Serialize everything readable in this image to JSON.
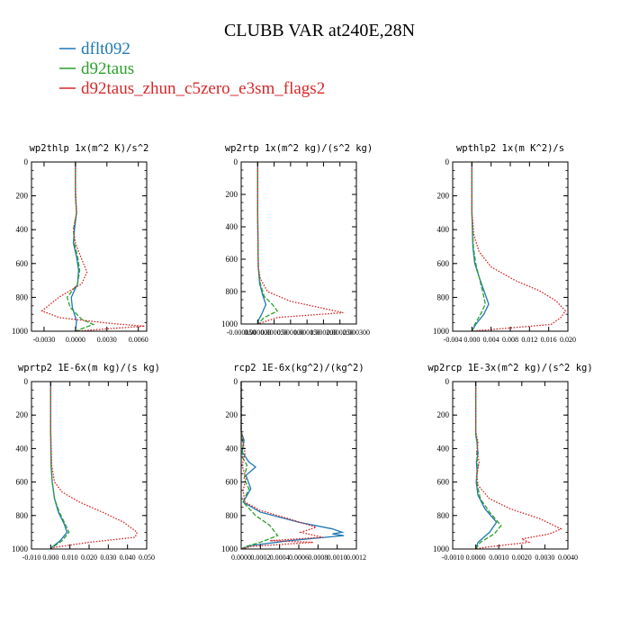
{
  "title": "CLUBB VAR at240E,28N",
  "legend": [
    {
      "name": "dflt092",
      "color": "#1f77b4"
    },
    {
      "name": "d92taus",
      "color": "#2ca02c"
    },
    {
      "name": "d92taus_zhun_c5zero_e3sm_flags2",
      "color": "#d62728"
    }
  ],
  "chart_data": [
    {
      "type": "line",
      "title": "wp2thlp  1x(m^2 K)/s^2",
      "xlim": [
        -0.0042,
        0.0068
      ],
      "ylim": [
        1000,
        0
      ],
      "xticks": [
        -0.003,
        0.0,
        0.003,
        0.006
      ],
      "xtick_labels": [
        "-0.0030",
        "0.0000",
        "0.0030",
        "0.0060"
      ],
      "yticks": [
        0,
        200,
        400,
        600,
        800,
        1000
      ],
      "ytick_labels": [
        "0",
        "200",
        "400",
        "600",
        "800",
        "1000"
      ],
      "series": [
        {
          "color": "#1f77b4",
          "style": "solid",
          "x": [
            0.0,
            0.0,
            0.0001,
            -0.0001,
            -0.0002,
            0.0001,
            0.0003,
            0.0002,
            -0.0004,
            -0.0003,
            0.0001,
            0.0
          ],
          "y": [
            0,
            200,
            300,
            400,
            480,
            560,
            640,
            720,
            800,
            860,
            940,
            1000
          ]
        },
        {
          "color": "#2ca02c",
          "style": "dashed",
          "x": [
            0.0,
            0.0,
            0.0001,
            -0.0002,
            -0.0001,
            0.0002,
            0.0004,
            0.0002,
            -0.0008,
            -0.0005,
            0.0006,
            0.0017,
            0.0
          ],
          "y": [
            0,
            200,
            300,
            400,
            480,
            560,
            640,
            720,
            800,
            860,
            930,
            960,
            1000
          ]
        },
        {
          "color": "#d62728",
          "style": "dotted",
          "x": [
            0.0,
            0.0,
            0.0001,
            -0.0002,
            0.0,
            0.0005,
            0.0011,
            0.0006,
            -0.0016,
            -0.0032,
            -0.0015,
            0.0035,
            0.0066,
            0.0
          ],
          "y": [
            0,
            160,
            300,
            400,
            480,
            560,
            650,
            720,
            800,
            880,
            920,
            955,
            970,
            1000
          ]
        }
      ]
    },
    {
      "type": "line",
      "title": "wp2rtp  1x(m^2 kg)/(s^2 kg)",
      "xlim": [
        -5e-05,
        0.0003
      ],
      "ylim": [
        1000,
        0
      ],
      "xticks": [
        -5e-05,
        0.0,
        5e-05,
        0.0001,
        0.00015,
        0.0002,
        0.00025,
        0.0003
      ],
      "xtick_labels": [
        "-0.000050",
        "0.000000",
        "0.000050",
        "0.000100",
        "0.000150",
        "0.000200",
        "0.000250",
        "0.000300"
      ],
      "yticks": [
        0,
        200,
        400,
        600,
        800,
        1000
      ],
      "ytick_labels": [
        "0",
        "200",
        "400",
        "600",
        "800",
        "1000"
      ],
      "series": [
        {
          "color": "#1f77b4",
          "style": "solid",
          "x": [
            0.0,
            0.0,
            1e-06,
            2e-06,
            6e-06,
            1.5e-05,
            2.5e-05,
            1.2e-05,
            3e-06,
            0.0
          ],
          "y": [
            0,
            300,
            500,
            650,
            750,
            820,
            880,
            940,
            975,
            1000
          ]
        },
        {
          "color": "#2ca02c",
          "style": "dashed",
          "x": [
            0.0,
            0.0,
            1e-06,
            2e-06,
            8e-06,
            2e-05,
            4.5e-05,
            6e-05,
            2e-05,
            0.0
          ],
          "y": [
            0,
            300,
            500,
            650,
            750,
            830,
            880,
            920,
            960,
            1000
          ]
        },
        {
          "color": "#d62728",
          "style": "dotted",
          "x": [
            0.0,
            0.0,
            1e-06,
            2e-06,
            8e-06,
            3e-05,
            0.0001,
            0.000215,
            0.00026,
            6e-05,
            0.0
          ],
          "y": [
            0,
            300,
            500,
            650,
            720,
            800,
            860,
            910,
            930,
            960,
            1000
          ]
        }
      ]
    },
    {
      "type": "line",
      "title": "wpthlp2  1x(m K^2)/s",
      "xlim": [
        -0.004,
        0.02
      ],
      "ylim": [
        1000,
        0
      ],
      "xticks": [
        -0.004,
        0.0,
        0.004,
        0.008,
        0.012,
        0.016,
        0.02
      ],
      "xtick_labels": [
        "-0.004",
        "0.000",
        "0.004",
        "0.008",
        "0.012",
        "0.016",
        "0.020"
      ],
      "yticks": [
        0,
        200,
        400,
        600,
        800,
        1000
      ],
      "ytick_labels": [
        "0",
        "200",
        "400",
        "600",
        "800",
        "1000"
      ],
      "series": [
        {
          "color": "#1f77b4",
          "style": "solid",
          "x": [
            0.0,
            0.0,
            0.0002,
            0.0006,
            0.0015,
            0.0025,
            0.0035,
            0.0025,
            0.0008,
            0.0
          ],
          "y": [
            0,
            300,
            500,
            600,
            680,
            760,
            840,
            900,
            960,
            1000
          ]
        },
        {
          "color": "#2ca02c",
          "style": "dashed",
          "x": [
            0.0,
            0.0,
            0.0003,
            0.0008,
            0.0015,
            0.0022,
            0.0028,
            0.0018,
            0.0006,
            0.0
          ],
          "y": [
            0,
            300,
            500,
            600,
            680,
            760,
            840,
            900,
            960,
            1000
          ]
        },
        {
          "color": "#d62728",
          "style": "dotted",
          "x": [
            0.0,
            0.0,
            0.0004,
            0.0015,
            0.004,
            0.009,
            0.014,
            0.0175,
            0.0195,
            0.0185,
            0.0165,
            0.0
          ],
          "y": [
            0,
            300,
            430,
            530,
            620,
            700,
            760,
            820,
            880,
            920,
            960,
            1000
          ]
        }
      ]
    },
    {
      "type": "line",
      "title": "wprtp2  1E-6x(m kg)/(s kg)",
      "xlim": [
        -0.01,
        0.05
      ],
      "ylim": [
        1000,
        0
      ],
      "xticks": [
        -0.01,
        0.0,
        0.01,
        0.02,
        0.03,
        0.04,
        0.05
      ],
      "xtick_labels": [
        "-0.010",
        "0.000",
        "0.010",
        "0.020",
        "0.030",
        "0.040",
        "0.050"
      ],
      "yticks": [
        0,
        200,
        400,
        600,
        800,
        1000
      ],
      "ytick_labels": [
        "0",
        "200",
        "400",
        "600",
        "800",
        "1000"
      ],
      "series": [
        {
          "color": "#1f77b4",
          "style": "solid",
          "x": [
            0.0,
            0.0,
            0.0002,
            0.0008,
            0.002,
            0.004,
            0.007,
            0.0085,
            0.005,
            0.0005,
            0.0
          ],
          "y": [
            0,
            300,
            500,
            600,
            700,
            780,
            850,
            900,
            950,
            990,
            1000
          ]
        },
        {
          "color": "#2ca02c",
          "style": "dashed",
          "x": [
            0.0,
            0.0,
            0.0002,
            0.0008,
            0.002,
            0.0045,
            0.0075,
            0.0095,
            0.006,
            0.001,
            0.0
          ],
          "y": [
            0,
            300,
            500,
            600,
            700,
            780,
            850,
            900,
            950,
            990,
            1000
          ]
        },
        {
          "color": "#d62728",
          "style": "dotted",
          "x": [
            0.0,
            0.0,
            0.0005,
            0.002,
            0.006,
            0.015,
            0.027,
            0.038,
            0.045,
            0.044,
            0.02,
            0.002,
            0.0
          ],
          "y": [
            0,
            300,
            500,
            600,
            660,
            720,
            780,
            840,
            900,
            930,
            960,
            990,
            1000
          ]
        }
      ]
    },
    {
      "type": "line",
      "title": "rcp2  1E-6x(kg^2)/(kg^2)",
      "xlim": [
        0.0,
        0.0012
      ],
      "ylim": [
        1000,
        0
      ],
      "xticks": [
        0.0,
        0.0002,
        0.0004,
        0.0006,
        0.0008,
        0.001,
        0.0012
      ],
      "xtick_labels": [
        "0.0000",
        "0.0002",
        "0.0004",
        "0.0006",
        "0.0008",
        "0.0010",
        "0.0012"
      ],
      "yticks": [
        0,
        200,
        400,
        600,
        800,
        1000
      ],
      "ytick_labels": [
        "0",
        "200",
        "400",
        "600",
        "800",
        "1000"
      ],
      "series": [
        {
          "color": "#1f77b4",
          "style": "solid",
          "x": [
            0.0,
            0.0,
            3e-05,
            1e-05,
            8e-05,
            0.00015,
            5e-05,
            0.0001,
            2e-05,
            0.0002,
            0.0006,
            0.00095,
            0.00105,
            0.00095,
            0.00107,
            0.0005,
            0.0001,
            0.0
          ],
          "y": [
            0,
            300,
            350,
            420,
            480,
            510,
            560,
            640,
            720,
            780,
            840,
            880,
            900,
            910,
            920,
            950,
            980,
            1000
          ]
        },
        {
          "color": "#2ca02c",
          "style": "dashed",
          "x": [
            0.0,
            0.0,
            2e-05,
            1e-05,
            6e-05,
            3e-05,
            8e-05,
            2e-05,
            0.00015,
            0.0003,
            0.00038,
            0.0002,
            5e-05,
            0.0
          ],
          "y": [
            0,
            300,
            370,
            450,
            500,
            580,
            640,
            720,
            800,
            860,
            920,
            960,
            985,
            1000
          ]
        },
        {
          "color": "#d62728",
          "style": "dotted",
          "x": [
            0.0,
            0.0,
            2e-05,
            4e-05,
            1e-05,
            5e-05,
            2e-05,
            4e-05,
            0.0002,
            0.0005,
            0.00078,
            0.00062,
            0.00085,
            0.0003,
            0.00075,
            0.0001,
            0.0
          ],
          "y": [
            0,
            300,
            360,
            430,
            500,
            580,
            650,
            720,
            770,
            820,
            870,
            900,
            930,
            950,
            960,
            985,
            1000
          ]
        }
      ]
    },
    {
      "type": "line",
      "title": "wp2rcp  1E-3x(m^2 kg)/(s^2 kg)",
      "xlim": [
        -0.001,
        0.004
      ],
      "ylim": [
        1000,
        0
      ],
      "xticks": [
        -0.001,
        0.0,
        0.001,
        0.002,
        0.003,
        0.004
      ],
      "xtick_labels": [
        "-0.0010",
        "0.0000",
        "0.0010",
        "0.0020",
        "0.0030",
        "0.0040"
      ],
      "yticks": [
        0,
        200,
        400,
        600,
        800,
        1000
      ],
      "ytick_labels": [
        "0",
        "200",
        "400",
        "600",
        "800",
        "1000"
      ],
      "series": [
        {
          "color": "#1f77b4",
          "style": "solid",
          "x": [
            0.0,
            0.0,
            5e-05,
            0.0001,
            3e-05,
            6e-05,
            2e-05,
            0.0001,
            0.0004,
            0.0009,
            0.0006,
            0.0001,
            0.0
          ],
          "y": [
            0,
            320,
            360,
            430,
            480,
            540,
            600,
            680,
            760,
            840,
            900,
            960,
            1000
          ]
        },
        {
          "color": "#2ca02c",
          "style": "dashed",
          "x": [
            0.0,
            0.0,
            8e-05,
            4e-05,
            0.0001,
            3e-05,
            7e-05,
            0.0002,
            0.0006,
            0.0011,
            0.0008,
            0.0002,
            0.0
          ],
          "y": [
            0,
            320,
            370,
            440,
            500,
            560,
            620,
            700,
            780,
            860,
            910,
            960,
            1000
          ]
        },
        {
          "color": "#d62728",
          "style": "dotted",
          "x": [
            0.0,
            0.0,
            0.0001,
            5e-05,
            0.00015,
            5e-05,
            0.0001,
            0.0006,
            0.0015,
            0.0028,
            0.0037,
            0.0032,
            0.002,
            0.0023,
            0.0004,
            0.0
          ],
          "y": [
            0,
            300,
            360,
            420,
            480,
            560,
            620,
            700,
            760,
            820,
            880,
            910,
            940,
            960,
            990,
            1000
          ]
        }
      ]
    }
  ]
}
